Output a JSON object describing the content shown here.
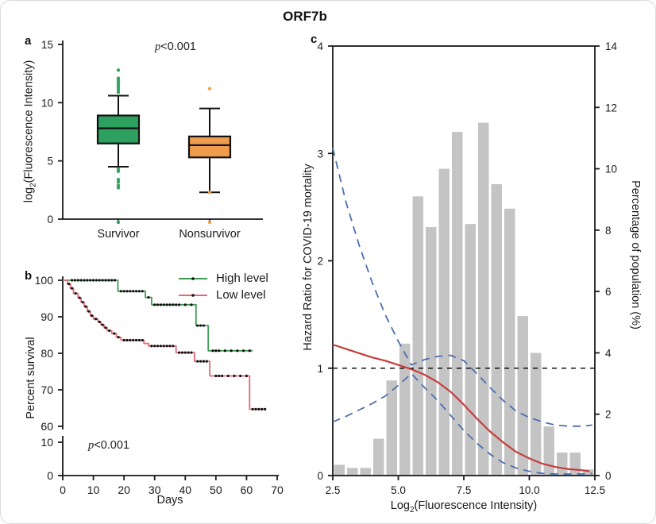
{
  "figure": {
    "title": "ORF7b",
    "colors": {
      "axis": "#1a1a1a",
      "box_green": "#2da05f",
      "box_orange": "#ef9d4c",
      "km_green": "#3f9b52",
      "km_red": "#e06a78",
      "hr_red": "#c63d3d",
      "ci_blue": "#4d6fae",
      "bar_gray": "#c4c4c4",
      "ref_black": "#111111"
    }
  },
  "chart_data": [
    {
      "panel_label": "a",
      "type": "box",
      "p_value_italic": "p",
      "p_value_rest": "<0.001",
      "ylabel_parts": {
        "pre": "log",
        "sub": "2",
        "post": "(Fluorescence Intensity)"
      },
      "ylim": [
        0,
        15
      ],
      "yticks": [
        0,
        5,
        10,
        15
      ],
      "categories": [
        "Survivor",
        "Nonsurvivor"
      ],
      "boxes": [
        {
          "label": "Survivor",
          "color": "#2da05f",
          "q1": 6.5,
          "median": 7.8,
          "q3": 8.9,
          "whisker_low": 4.5,
          "whisker_high": 10.6,
          "outliers_high": [
            12.8,
            12.1,
            11.9,
            11.7,
            11.5,
            11.3,
            11.1,
            10.9
          ],
          "outliers_low": [
            4.3,
            4.1,
            3.4,
            3.2,
            2.9,
            2.7
          ],
          "baseline_points": [
            0
          ]
        },
        {
          "label": "Nonsurvivor",
          "color": "#ef9d4c",
          "q1": 5.3,
          "median": 6.35,
          "q3": 7.1,
          "whisker_low": 2.3,
          "whisker_high": 9.5,
          "outliers_high": [
            11.2
          ],
          "outliers_low": [
            2.3
          ],
          "baseline_points": [
            0
          ]
        }
      ]
    },
    {
      "panel_label": "b",
      "type": "line",
      "p_value_italic": "p",
      "p_value_rest": "<0.001",
      "xlabel": "Days",
      "ylabel": "Percent survival",
      "xlim": [
        0,
        70
      ],
      "xticks": [
        0,
        10,
        20,
        30,
        40,
        50,
        60,
        70
      ],
      "y_axis_break": {
        "upper_ticks": [
          60,
          70,
          80,
          90,
          100
        ],
        "lower_ticks": [
          0,
          10
        ]
      },
      "series": [
        {
          "name": "High level",
          "color": "#3f9b52",
          "steps": [
            [
              0,
              100
            ],
            [
              18,
              100
            ],
            [
              18,
              97
            ],
            [
              27,
              97
            ],
            [
              27,
              95.3
            ],
            [
              29,
              95.3
            ],
            [
              29,
              93.3
            ],
            [
              43.5,
              93.3
            ],
            [
              43.5,
              87.6
            ],
            [
              47.5,
              87.6
            ],
            [
              47.5,
              80.7
            ],
            [
              62,
              80.7
            ]
          ],
          "censor": [
            [
              3,
              100
            ],
            [
              4,
              100
            ],
            [
              5,
              100
            ],
            [
              6,
              100
            ],
            [
              7,
              100
            ],
            [
              8,
              100
            ],
            [
              9,
              100
            ],
            [
              10,
              100
            ],
            [
              11,
              100
            ],
            [
              12,
              100
            ],
            [
              13,
              100
            ],
            [
              14,
              100
            ],
            [
              15,
              100
            ],
            [
              16,
              100
            ],
            [
              17,
              100
            ],
            [
              19,
              97
            ],
            [
              20,
              97
            ],
            [
              21,
              97
            ],
            [
              22,
              97
            ],
            [
              23,
              97
            ],
            [
              24,
              97
            ],
            [
              25,
              97
            ],
            [
              26,
              97
            ],
            [
              28,
              95.3
            ],
            [
              30,
              93.3
            ],
            [
              31,
              93.3
            ],
            [
              32,
              93.3
            ],
            [
              33,
              93.3
            ],
            [
              34,
              93.3
            ],
            [
              35,
              93.3
            ],
            [
              36,
              93.3
            ],
            [
              37,
              93.3
            ],
            [
              38,
              93.3
            ],
            [
              40,
              93.3
            ],
            [
              42,
              93.3
            ],
            [
              44,
              87.6
            ],
            [
              45,
              87.6
            ],
            [
              46,
              87.6
            ],
            [
              49,
              80.7
            ],
            [
              50,
              80.7
            ],
            [
              51,
              80.7
            ],
            [
              53,
              80.7
            ],
            [
              55,
              80.7
            ],
            [
              57,
              80.7
            ],
            [
              59,
              80.7
            ],
            [
              61,
              80.7
            ]
          ]
        },
        {
          "name": "Low level",
          "color": "#e06a78",
          "steps": [
            [
              0,
              100
            ],
            [
              1.5,
              100
            ],
            [
              1.5,
              99
            ],
            [
              2.5,
              99
            ],
            [
              2.5,
              97.8
            ],
            [
              3.5,
              97.8
            ],
            [
              3.5,
              96.4
            ],
            [
              5,
              96.4
            ],
            [
              5,
              95.2
            ],
            [
              6,
              95.2
            ],
            [
              6,
              94
            ],
            [
              7,
              94
            ],
            [
              7,
              92.8
            ],
            [
              8,
              92.8
            ],
            [
              8,
              91.5
            ],
            [
              9,
              91.5
            ],
            [
              9,
              90.3
            ],
            [
              10,
              90.3
            ],
            [
              10,
              89.4
            ],
            [
              11.5,
              89.4
            ],
            [
              11.5,
              88.6
            ],
            [
              12.5,
              88.6
            ],
            [
              12.5,
              87.8
            ],
            [
              13.5,
              87.8
            ],
            [
              13.5,
              87
            ],
            [
              14.5,
              87
            ],
            [
              14.5,
              86.2
            ],
            [
              16,
              86.2
            ],
            [
              16,
              85.4
            ],
            [
              17.5,
              85.4
            ],
            [
              17.5,
              84.4
            ],
            [
              19,
              84.4
            ],
            [
              19,
              83.6
            ],
            [
              26.5,
              83.6
            ],
            [
              26.5,
              82.7
            ],
            [
              28,
              82.7
            ],
            [
              28,
              82
            ],
            [
              37,
              82
            ],
            [
              37,
              80.2
            ],
            [
              43,
              80.2
            ],
            [
              43,
              77.8
            ],
            [
              48,
              77.8
            ],
            [
              48,
              73.8
            ],
            [
              61,
              73.8
            ],
            [
              61,
              64.7
            ],
            [
              66.5,
              64.7
            ]
          ],
          "censor": [
            [
              2,
              99
            ],
            [
              3,
              97.8
            ],
            [
              4.2,
              96.4
            ],
            [
              5.5,
              95.2
            ],
            [
              6.5,
              94
            ],
            [
              7.5,
              92.8
            ],
            [
              8.5,
              91.5
            ],
            [
              9.5,
              90.3
            ],
            [
              10.8,
              89.4
            ],
            [
              12,
              88.6
            ],
            [
              13,
              87.8
            ],
            [
              14,
              87
            ],
            [
              15.2,
              86.2
            ],
            [
              16.8,
              85.4
            ],
            [
              18.2,
              84.4
            ],
            [
              20,
              83.6
            ],
            [
              21,
              83.6
            ],
            [
              22,
              83.6
            ],
            [
              23,
              83.6
            ],
            [
              24,
              83.6
            ],
            [
              25,
              83.6
            ],
            [
              26,
              83.6
            ],
            [
              29,
              82
            ],
            [
              30,
              82
            ],
            [
              31,
              82
            ],
            [
              32,
              82
            ],
            [
              33,
              82
            ],
            [
              34,
              82
            ],
            [
              35,
              82
            ],
            [
              36,
              82
            ],
            [
              38,
              80.2
            ],
            [
              39,
              80.2
            ],
            [
              40,
              80.2
            ],
            [
              41,
              80.2
            ],
            [
              42,
              80.2
            ],
            [
              44,
              77.8
            ],
            [
              45,
              77.8
            ],
            [
              46,
              77.8
            ],
            [
              47,
              77.8
            ],
            [
              50,
              73.8
            ],
            [
              51,
              73.8
            ],
            [
              52,
              73.8
            ],
            [
              54,
              73.8
            ],
            [
              56,
              73.8
            ],
            [
              58,
              73.8
            ],
            [
              60,
              73.8
            ],
            [
              62,
              64.7
            ],
            [
              63,
              64.7
            ],
            [
              64,
              64.7
            ],
            [
              65,
              64.7
            ],
            [
              66,
              64.7
            ]
          ]
        }
      ]
    },
    {
      "panel_label": "c",
      "type": "histogram+line",
      "xlabel_parts": {
        "pre": "Log",
        "sub": "2",
        "post": "(Fluorescence Intensity)"
      },
      "ylabel_left": "Hazard Ratio for COVID-19 mortality",
      "ylabel_right": "Percentage of population (%)",
      "xlim": [
        2.5,
        12.5
      ],
      "xticks": [
        2.5,
        5.0,
        7.5,
        10.0,
        12.5
      ],
      "ylim_left": [
        0,
        4
      ],
      "yticks_left": [
        0,
        1,
        2,
        3,
        4
      ],
      "ylim_right": [
        0,
        14
      ],
      "yticks_right": [
        0,
        2,
        4,
        6,
        8,
        10,
        12,
        14
      ],
      "reference_line_hr": 1,
      "histogram": {
        "bin_start": 2.5,
        "bin_width": 0.5,
        "color": "#c4c4c4",
        "percent": [
          0.35,
          0.25,
          0.25,
          1.2,
          3.1,
          4.3,
          9.1,
          8.1,
          10.0,
          11.2,
          8.2,
          11.5,
          9.5,
          8.7,
          5.2,
          4.0,
          1.6,
          0.75,
          0.75,
          0.2
        ]
      },
      "hr_curve": {
        "color": "#c63d3d",
        "points": [
          [
            2.5,
            1.22
          ],
          [
            3,
            1.18
          ],
          [
            3.5,
            1.14
          ],
          [
            4,
            1.1
          ],
          [
            4.5,
            1.07
          ],
          [
            5,
            1.03
          ],
          [
            5.5,
            0.99
          ],
          [
            6,
            0.94
          ],
          [
            6.5,
            0.87
          ],
          [
            7,
            0.78
          ],
          [
            7.5,
            0.66
          ],
          [
            8,
            0.53
          ],
          [
            8.5,
            0.41
          ],
          [
            9,
            0.31
          ],
          [
            9.5,
            0.22
          ],
          [
            10,
            0.16
          ],
          [
            10.5,
            0.11
          ],
          [
            11,
            0.08
          ],
          [
            11.5,
            0.06
          ],
          [
            12,
            0.05
          ],
          [
            12.3,
            0.04
          ]
        ]
      },
      "ci_upper": {
        "color": "#4d6fae",
        "points": [
          [
            2.5,
            3.05
          ],
          [
            3,
            2.55
          ],
          [
            3.5,
            2.15
          ],
          [
            4,
            1.8
          ],
          [
            4.5,
            1.5
          ],
          [
            5,
            1.25
          ],
          [
            5.5,
            1.03
          ],
          [
            6,
            1.08
          ],
          [
            6.5,
            1.11
          ],
          [
            7,
            1.12
          ],
          [
            7.5,
            1.07
          ],
          [
            8,
            0.95
          ],
          [
            8.5,
            0.82
          ],
          [
            9,
            0.7
          ],
          [
            9.5,
            0.6
          ],
          [
            10,
            0.54
          ],
          [
            10.5,
            0.5
          ],
          [
            11,
            0.47
          ],
          [
            11.5,
            0.46
          ],
          [
            12,
            0.46
          ],
          [
            12.4,
            0.47
          ]
        ]
      },
      "ci_lower": {
        "color": "#4d6fae",
        "points": [
          [
            2.5,
            0.5
          ],
          [
            3,
            0.55
          ],
          [
            3.5,
            0.61
          ],
          [
            4,
            0.67
          ],
          [
            4.5,
            0.74
          ],
          [
            5,
            0.84
          ],
          [
            5.5,
            0.95
          ],
          [
            6,
            0.82
          ],
          [
            6.5,
            0.7
          ],
          [
            7,
            0.56
          ],
          [
            7.5,
            0.42
          ],
          [
            8,
            0.3
          ],
          [
            8.5,
            0.2
          ],
          [
            9,
            0.12
          ],
          [
            9.5,
            0.07
          ],
          [
            10,
            0.04
          ],
          [
            10.5,
            0.02
          ],
          [
            11,
            0.015
          ],
          [
            11.5,
            0.015
          ],
          [
            12,
            0.015
          ],
          [
            12.4,
            0.02
          ]
        ]
      }
    }
  ]
}
